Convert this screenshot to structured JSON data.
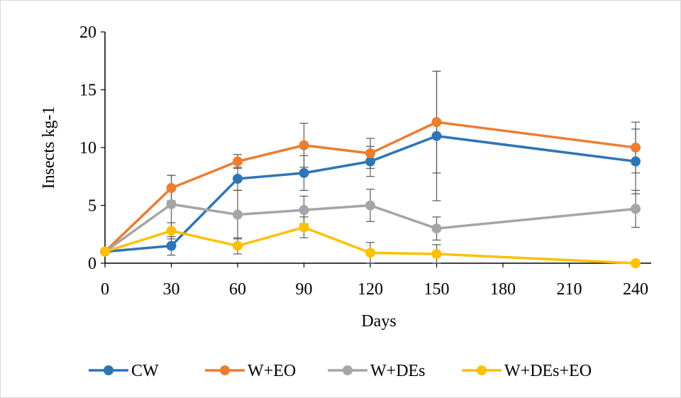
{
  "chart_data": {
    "type": "line",
    "xlabel": "Days",
    "ylabel": "Insects kg-1",
    "x_ticks": [
      "0",
      "30",
      "60",
      "90",
      "120",
      "150",
      "180",
      "210",
      "240"
    ],
    "y_ticks": [
      "0",
      "5",
      "10",
      "15",
      "20"
    ],
    "ylim": [
      0,
      20
    ],
    "x_slots": 9,
    "grid": false,
    "legend_position": "bottom",
    "x": [
      0,
      30,
      60,
      90,
      120,
      150,
      240
    ],
    "series": [
      {
        "name": "CW",
        "color": "#2E75B6",
        "values": [
          1.0,
          1.5,
          7.3,
          7.8,
          8.8,
          11.0,
          8.8
        ],
        "error": [
          0,
          0.8,
          1.0,
          1.5,
          1.3,
          5.6,
          2.8
        ]
      },
      {
        "name": "W+EO",
        "color": "#ED7D31",
        "values": [
          1.0,
          6.5,
          8.8,
          10.2,
          9.5,
          12.2,
          10.0
        ],
        "error": [
          0,
          1.1,
          0.6,
          1.9,
          1.3,
          4.4,
          2.2
        ]
      },
      {
        "name": "W+DEs",
        "color": "#A5A5A5",
        "values": [
          1.0,
          5.1,
          4.2,
          4.6,
          5.0,
          3.0,
          4.7
        ],
        "error": [
          0,
          2.5,
          2.1,
          1.2,
          1.4,
          1.0,
          1.6
        ]
      },
      {
        "name": "W+DEs+EO",
        "color": "#FFC000",
        "values": [
          1.0,
          2.8,
          1.5,
          3.1,
          0.9,
          0.8,
          0.0
        ],
        "error": [
          0,
          0.7,
          0.7,
          0.9,
          0.9,
          0.8,
          0
        ]
      }
    ]
  }
}
